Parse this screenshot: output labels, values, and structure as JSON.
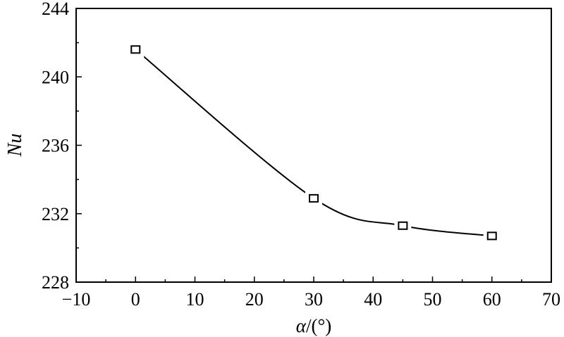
{
  "chart_data": {
    "type": "line",
    "title": "",
    "xlabel_symbol": "α",
    "xlabel_unit": "/(°)",
    "ylabel": "Nu",
    "xlim": [
      -10,
      70
    ],
    "ylim": [
      228,
      244
    ],
    "xticks": [
      -10,
      0,
      10,
      20,
      30,
      40,
      50,
      60,
      70
    ],
    "xtick_labels": [
      "−10",
      "0",
      "10",
      "20",
      "30",
      "40",
      "50",
      "60",
      "70"
    ],
    "yticks": [
      228,
      232,
      236,
      240,
      244
    ],
    "ytick_labels": [
      "228",
      "232",
      "236",
      "240",
      "244"
    ],
    "grid": false,
    "legend": "none",
    "series": [
      {
        "name": "Nu",
        "marker": "open-square",
        "line": "smooth",
        "x": [
          0,
          30,
          45,
          60
        ],
        "y": [
          241.6,
          232.9,
          231.3,
          230.7
        ]
      }
    ]
  }
}
